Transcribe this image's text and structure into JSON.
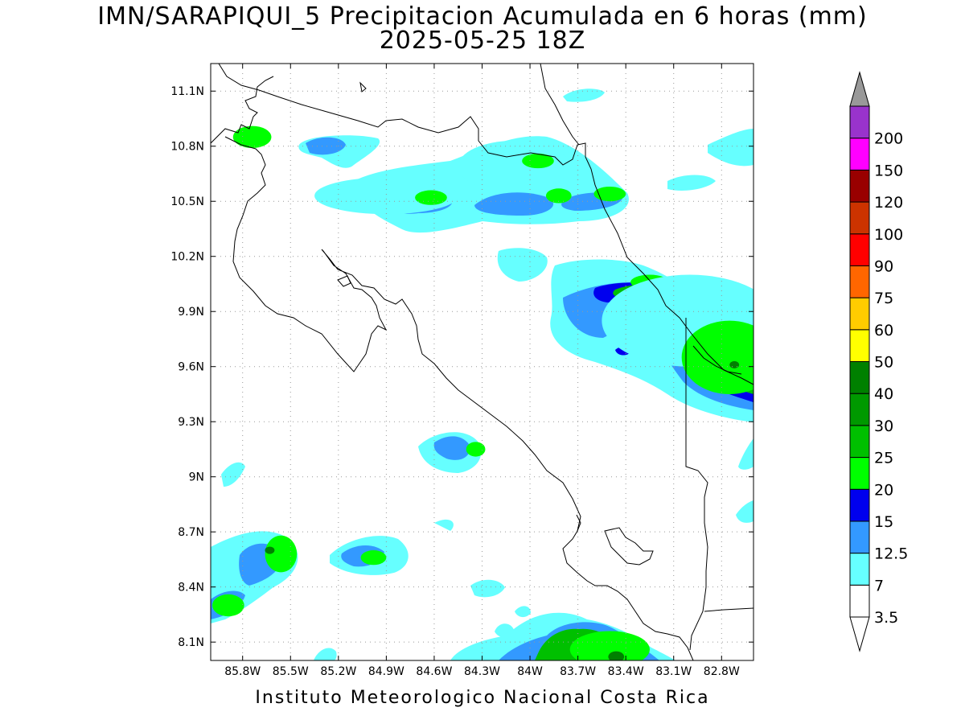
{
  "title_line1": "IMN/SARAPIQUI_5 Precipitacion Acumulada en 6 horas (mm)",
  "title_line2": "2025-05-25 18Z",
  "footer": "Instituto Meteorologico Nacional Costa Rica",
  "chart_data": {
    "type": "heatmap",
    "variable": "Precipitacion Acumulada en 6 horas",
    "units": "mm",
    "valid_time": "2025-05-25 18Z",
    "lon_range": [
      -86.0,
      -82.6
    ],
    "lat_range": [
      8.0,
      11.25
    ],
    "x_ticks": [
      -85.8,
      -85.5,
      -85.2,
      -84.9,
      -84.6,
      -84.3,
      -84.0,
      -83.7,
      -83.4,
      -83.1,
      -82.8
    ],
    "x_tick_labels": [
      "85.8W",
      "85.5W",
      "85.2W",
      "84.9W",
      "84.6W",
      "84.3W",
      "84W",
      "83.7W",
      "83.4W",
      "83.1W",
      "82.8W"
    ],
    "y_ticks": [
      8.1,
      8.4,
      8.7,
      9.0,
      9.3,
      9.6,
      9.9,
      10.2,
      10.5,
      10.8,
      11.1
    ],
    "y_tick_labels": [
      "8.1N",
      "8.4N",
      "8.7N",
      "9N",
      "9.3N",
      "9.6N",
      "9.9N",
      "10.2N",
      "10.5N",
      "10.8N",
      "11.1N"
    ],
    "grid": true,
    "grid_style": "dotted",
    "colorbar": {
      "orientation": "vertical",
      "placement": "right",
      "levels": [
        {
          "label": "3.5",
          "color": "#ffffff"
        },
        {
          "label": "7",
          "color": "#66ffff"
        },
        {
          "label": "12.5",
          "color": "#3399ff"
        },
        {
          "label": "15",
          "color": "#0000ee"
        },
        {
          "label": "20",
          "color": "#00ff00"
        },
        {
          "label": "25",
          "color": "#00c000"
        },
        {
          "label": "30",
          "color": "#009900"
        },
        {
          "label": "40",
          "color": "#008000"
        },
        {
          "label": "50",
          "color": "#ffff00"
        },
        {
          "label": "60",
          "color": "#ffcc00"
        },
        {
          "label": "75",
          "color": "#ff6600"
        },
        {
          "label": "90",
          "color": "#ff0000"
        },
        {
          "label": "100",
          "color": "#cc3300"
        },
        {
          "label": "120",
          "color": "#990000"
        },
        {
          "label": "150",
          "color": "#ff00ff"
        },
        {
          "label": "200",
          "color": "#9933cc"
        }
      ],
      "over_color": "#999999"
    },
    "precip_cells": [
      {
        "lon": -85.74,
        "lat": 10.85,
        "rlon": 0.12,
        "rlat": 0.06,
        "mm": 20
      },
      {
        "lon": -84.9,
        "lat": 10.53,
        "rlon": 0.45,
        "rlat": 0.1,
        "mm": 7
      },
      {
        "lon": -84.62,
        "lat": 10.52,
        "rlon": 0.1,
        "rlat": 0.04,
        "mm": 20
      },
      {
        "lon": -84.1,
        "lat": 10.69,
        "rlon": 0.35,
        "rlat": 0.14,
        "mm": 7
      },
      {
        "lon": -83.95,
        "lat": 10.72,
        "rlon": 0.1,
        "rlat": 0.04,
        "mm": 20
      },
      {
        "lon": -83.82,
        "lat": 10.53,
        "rlon": 0.08,
        "rlat": 0.04,
        "mm": 20
      },
      {
        "lon": -83.5,
        "lat": 10.54,
        "rlon": 0.1,
        "rlat": 0.04,
        "mm": 20
      },
      {
        "lon": -83.25,
        "lat": 10.06,
        "rlon": 0.12,
        "rlat": 0.04,
        "mm": 20
      },
      {
        "lon": -83.0,
        "lat": 9.85,
        "rlon": 0.55,
        "rlat": 0.25,
        "mm": 7
      },
      {
        "lon": -82.75,
        "lat": 9.65,
        "rlon": 0.3,
        "rlat": 0.2,
        "mm": 20
      },
      {
        "lon": -82.72,
        "lat": 9.61,
        "rlon": 0.03,
        "rlat": 0.02,
        "mm": 40
      },
      {
        "lon": -84.34,
        "lat": 9.15,
        "rlon": 0.06,
        "rlat": 0.04,
        "mm": 20
      },
      {
        "lon": -85.56,
        "lat": 8.58,
        "rlon": 0.1,
        "rlat": 0.1,
        "mm": 20
      },
      {
        "lon": -85.63,
        "lat": 8.6,
        "rlon": 0.03,
        "rlat": 0.02,
        "mm": 40
      },
      {
        "lon": -84.98,
        "lat": 8.56,
        "rlon": 0.08,
        "rlat": 0.04,
        "mm": 20
      },
      {
        "lon": -85.89,
        "lat": 8.3,
        "rlon": 0.1,
        "rlat": 0.06,
        "mm": 20
      },
      {
        "lon": -83.5,
        "lat": 8.06,
        "rlon": 0.25,
        "rlat": 0.1,
        "mm": 20
      },
      {
        "lon": -83.46,
        "lat": 8.02,
        "rlon": 0.05,
        "rlat": 0.03,
        "mm": 40
      }
    ]
  }
}
